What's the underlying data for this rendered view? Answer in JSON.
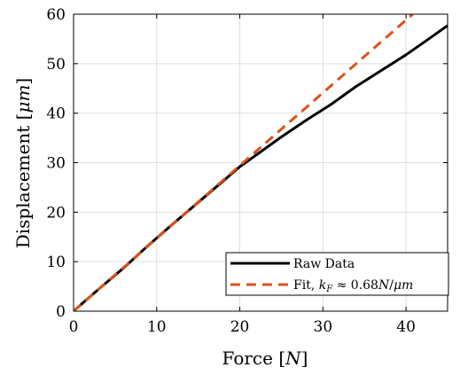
{
  "chart_data": {
    "type": "line",
    "xlabel": "Force [N]",
    "ylabel": "Displacement [μm]",
    "xlim": [
      0,
      45
    ],
    "ylim": [
      0,
      60
    ],
    "xticks": [
      "0",
      "10",
      "20",
      "30",
      "40"
    ],
    "yticks": [
      "0",
      "10",
      "20",
      "30",
      "40",
      "50",
      "60"
    ],
    "grid": true,
    "legend_position": "bottom-right",
    "series": [
      {
        "name": "Raw Data",
        "color": "#000000",
        "style": "solid",
        "x": [
          0,
          1,
          3,
          6,
          9,
          12,
          15,
          18,
          20,
          22,
          25,
          28,
          31,
          34,
          37,
          40,
          43,
          45
        ],
        "y": [
          0,
          1.5,
          4.4,
          8.7,
          13.3,
          17.7,
          22.0,
          26.3,
          29.2,
          31.6,
          35.2,
          38.6,
          41.8,
          45.4,
          48.6,
          51.8,
          55.3,
          57.7
        ]
      },
      {
        "name": "Fit, k_F ≈ 0.68N/μm",
        "color": "#D95319",
        "style": "dashed",
        "x": [
          0,
          40.8
        ],
        "y": [
          0,
          60
        ]
      }
    ]
  },
  "legend": {
    "raw_label": "Raw Data",
    "fit_label_prefix": "Fit, ",
    "fit_label_k": "k",
    "fit_label_sub": "F",
    "fit_label_value": " ≈ 0.68",
    "fit_label_unit_n": "N",
    "fit_label_slash": "/",
    "fit_label_unit_um": "μm"
  },
  "axis_titles": {
    "x_word": "Force [",
    "x_unit": "N",
    "x_close": "]",
    "y_word": "Displacement [",
    "y_unit": "μm",
    "y_close": "]"
  }
}
